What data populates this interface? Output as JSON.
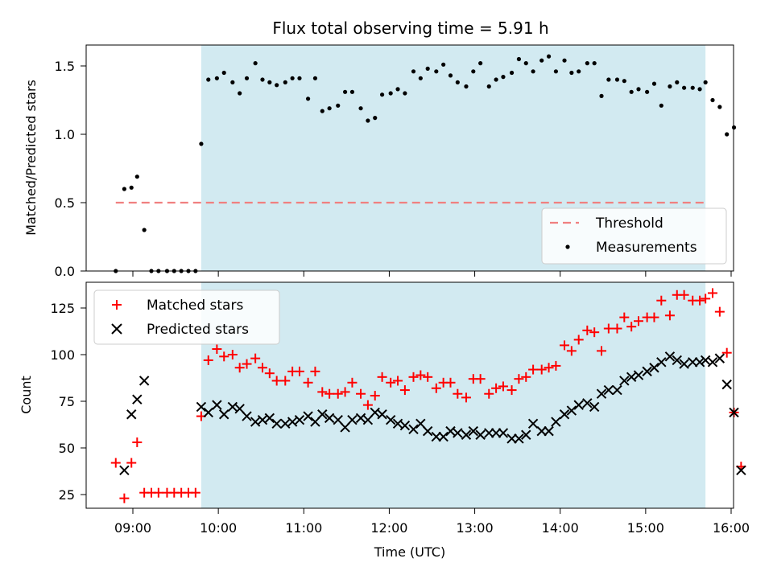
{
  "chart_data": [
    {
      "type": "scatter",
      "title": "Flux total observing time = 5.91 h",
      "xlabel": "",
      "ylabel": "Matched/Predicted stars",
      "xlim": [
        "08:35",
        "16:05"
      ],
      "ylim": [
        0.0,
        1.65
      ],
      "yticks": [
        "0.0",
        "0.5",
        "1.0",
        "1.5"
      ],
      "grid": false,
      "legend_position": "bottom-right",
      "shaded_region": {
        "x": [
          "09:48",
          "15:42"
        ],
        "color": "#add8e6"
      },
      "threshold": {
        "name": "Threshold",
        "value": 0.5,
        "x": [
          "08:48",
          "15:42"
        ],
        "color": "#f08080",
        "style": "dashed"
      },
      "series": [
        {
          "name": "Measurements",
          "color": "#000000",
          "marker": "dot",
          "points": [
            [
              "08:48",
              0.0
            ],
            [
              "08:54",
              0.6
            ],
            [
              "08:59",
              0.61
            ],
            [
              "09:03",
              0.69
            ],
            [
              "09:08",
              0.3
            ],
            [
              "09:13",
              0.0
            ],
            [
              "09:18",
              0.0
            ],
            [
              "09:24",
              0.0
            ],
            [
              "09:29",
              0.0
            ],
            [
              "09:34",
              0.0
            ],
            [
              "09:39",
              0.0
            ],
            [
              "09:44",
              0.0
            ],
            [
              "09:48",
              0.93
            ],
            [
              "09:53",
              1.4
            ],
            [
              "09:59",
              1.41
            ],
            [
              "10:04",
              1.45
            ],
            [
              "10:10",
              1.38
            ],
            [
              "10:15",
              1.3
            ],
            [
              "10:20",
              1.41
            ],
            [
              "10:26",
              1.52
            ],
            [
              "10:31",
              1.4
            ],
            [
              "10:36",
              1.38
            ],
            [
              "10:41",
              1.36
            ],
            [
              "10:47",
              1.38
            ],
            [
              "10:52",
              1.41
            ],
            [
              "10:57",
              1.41
            ],
            [
              "11:03",
              1.26
            ],
            [
              "11:08",
              1.41
            ],
            [
              "11:13",
              1.17
            ],
            [
              "11:18",
              1.19
            ],
            [
              "11:24",
              1.21
            ],
            [
              "11:29",
              1.31
            ],
            [
              "11:34",
              1.31
            ],
            [
              "11:40",
              1.19
            ],
            [
              "11:45",
              1.1
            ],
            [
              "11:50",
              1.12
            ],
            [
              "11:55",
              1.29
            ],
            [
              "12:01",
              1.3
            ],
            [
              "12:06",
              1.33
            ],
            [
              "12:11",
              1.3
            ],
            [
              "12:17",
              1.46
            ],
            [
              "12:22",
              1.41
            ],
            [
              "12:27",
              1.48
            ],
            [
              "12:33",
              1.46
            ],
            [
              "12:38",
              1.51
            ],
            [
              "12:43",
              1.43
            ],
            [
              "12:48",
              1.38
            ],
            [
              "12:54",
              1.35
            ],
            [
              "12:59",
              1.46
            ],
            [
              "13:04",
              1.52
            ],
            [
              "13:10",
              1.35
            ],
            [
              "13:15",
              1.4
            ],
            [
              "13:20",
              1.42
            ],
            [
              "13:26",
              1.45
            ],
            [
              "13:31",
              1.55
            ],
            [
              "13:36",
              1.52
            ],
            [
              "13:41",
              1.46
            ],
            [
              "13:47",
              1.54
            ],
            [
              "13:52",
              1.57
            ],
            [
              "13:57",
              1.46
            ],
            [
              "14:03",
              1.54
            ],
            [
              "14:08",
              1.45
            ],
            [
              "14:13",
              1.46
            ],
            [
              "14:19",
              1.52
            ],
            [
              "14:24",
              1.52
            ],
            [
              "14:29",
              1.28
            ],
            [
              "14:34",
              1.4
            ],
            [
              "14:40",
              1.4
            ],
            [
              "14:45",
              1.39
            ],
            [
              "14:50",
              1.31
            ],
            [
              "14:55",
              1.33
            ],
            [
              "15:01",
              1.31
            ],
            [
              "15:06",
              1.37
            ],
            [
              "15:11",
              1.21
            ],
            [
              "15:17",
              1.35
            ],
            [
              "15:22",
              1.38
            ],
            [
              "15:27",
              1.34
            ],
            [
              "15:33",
              1.34
            ],
            [
              "15:38",
              1.33
            ],
            [
              "15:42",
              1.38
            ],
            [
              "15:47",
              1.25
            ],
            [
              "15:52",
              1.2
            ],
            [
              "15:57",
              1.0
            ],
            [
              "16:02",
              1.05
            ]
          ]
        }
      ]
    },
    {
      "type": "scatter",
      "title": "",
      "xlabel": "Time (UTC)",
      "ylabel": "Count",
      "xlim": [
        "08:35",
        "16:05"
      ],
      "xticks": [
        "09:00",
        "10:00",
        "11:00",
        "12:00",
        "13:00",
        "14:00",
        "15:00",
        "16:00"
      ],
      "ylim": [
        17,
        139
      ],
      "yticks": [
        "25",
        "50",
        "75",
        "100",
        "125"
      ],
      "grid": false,
      "legend_position": "top-left",
      "shaded_region": {
        "x": [
          "09:48",
          "15:42"
        ],
        "color": "#add8e6"
      },
      "series": [
        {
          "name": "Matched stars",
          "color": "#ff0000",
          "marker": "plus",
          "points": [
            [
              "08:48",
              42
            ],
            [
              "08:54",
              23
            ],
            [
              "08:59",
              42
            ],
            [
              "09:03",
              53
            ],
            [
              "09:08",
              26
            ],
            [
              "09:13",
              26
            ],
            [
              "09:18",
              26
            ],
            [
              "09:24",
              26
            ],
            [
              "09:29",
              26
            ],
            [
              "09:34",
              26
            ],
            [
              "09:39",
              26
            ],
            [
              "09:44",
              26
            ],
            [
              "09:48",
              67
            ],
            [
              "09:53",
              97
            ],
            [
              "09:59",
              103
            ],
            [
              "10:04",
              99
            ],
            [
              "10:10",
              100
            ],
            [
              "10:15",
              93
            ],
            [
              "10:20",
              95
            ],
            [
              "10:26",
              98
            ],
            [
              "10:31",
              93
            ],
            [
              "10:36",
              90
            ],
            [
              "10:41",
              86
            ],
            [
              "10:47",
              86
            ],
            [
              "10:52",
              91
            ],
            [
              "10:57",
              91
            ],
            [
              "11:03",
              85
            ],
            [
              "11:08",
              91
            ],
            [
              "11:13",
              80
            ],
            [
              "11:18",
              79
            ],
            [
              "11:24",
              79
            ],
            [
              "11:29",
              80
            ],
            [
              "11:34",
              85
            ],
            [
              "11:40",
              79
            ],
            [
              "11:45",
              73
            ],
            [
              "11:50",
              78
            ],
            [
              "11:55",
              88
            ],
            [
              "12:01",
              85
            ],
            [
              "12:06",
              86
            ],
            [
              "12:11",
              81
            ],
            [
              "12:17",
              88
            ],
            [
              "12:22",
              89
            ],
            [
              "12:27",
              88
            ],
            [
              "12:33",
              82
            ],
            [
              "12:38",
              85
            ],
            [
              "12:43",
              85
            ],
            [
              "12:48",
              79
            ],
            [
              "12:54",
              77
            ],
            [
              "12:59",
              87
            ],
            [
              "13:04",
              87
            ],
            [
              "13:10",
              79
            ],
            [
              "13:15",
              82
            ],
            [
              "13:20",
              83
            ],
            [
              "13:26",
              81
            ],
            [
              "13:31",
              87
            ],
            [
              "13:36",
              88
            ],
            [
              "13:41",
              92
            ],
            [
              "13:47",
              92
            ],
            [
              "13:52",
              93
            ],
            [
              "13:57",
              94
            ],
            [
              "14:03",
              105
            ],
            [
              "14:08",
              102
            ],
            [
              "14:13",
              108
            ],
            [
              "14:19",
              113
            ],
            [
              "14:24",
              112
            ],
            [
              "14:29",
              102
            ],
            [
              "14:34",
              114
            ],
            [
              "14:40",
              114
            ],
            [
              "14:45",
              120
            ],
            [
              "14:50",
              115
            ],
            [
              "14:55",
              118
            ],
            [
              "15:01",
              120
            ],
            [
              "15:06",
              120
            ],
            [
              "15:11",
              129
            ],
            [
              "15:17",
              121
            ],
            [
              "15:22",
              132
            ],
            [
              "15:27",
              132
            ],
            [
              "15:33",
              129
            ],
            [
              "15:38",
              129
            ],
            [
              "15:42",
              130
            ],
            [
              "15:47",
              133
            ],
            [
              "15:52",
              123
            ],
            [
              "15:57",
              101
            ],
            [
              "16:02",
              69
            ],
            [
              "16:07",
              40
            ]
          ]
        },
        {
          "name": "Predicted stars",
          "color": "#000000",
          "marker": "x",
          "points": [
            [
              "08:54",
              38
            ],
            [
              "08:59",
              68
            ],
            [
              "09:03",
              76
            ],
            [
              "09:08",
              86
            ],
            [
              "09:48",
              72
            ],
            [
              "09:53",
              69
            ],
            [
              "09:59",
              73
            ],
            [
              "10:04",
              68
            ],
            [
              "10:10",
              72
            ],
            [
              "10:15",
              71
            ],
            [
              "10:20",
              67
            ],
            [
              "10:26",
              64
            ],
            [
              "10:31",
              65
            ],
            [
              "10:36",
              66
            ],
            [
              "10:41",
              63
            ],
            [
              "10:47",
              63
            ],
            [
              "10:52",
              64
            ],
            [
              "10:57",
              65
            ],
            [
              "11:03",
              67
            ],
            [
              "11:08",
              64
            ],
            [
              "11:13",
              68
            ],
            [
              "11:18",
              66
            ],
            [
              "11:24",
              65
            ],
            [
              "11:29",
              61
            ],
            [
              "11:34",
              65
            ],
            [
              "11:40",
              66
            ],
            [
              "11:45",
              65
            ],
            [
              "11:50",
              69
            ],
            [
              "11:55",
              68
            ],
            [
              "12:01",
              65
            ],
            [
              "12:06",
              63
            ],
            [
              "12:11",
              62
            ],
            [
              "12:17",
              60
            ],
            [
              "12:22",
              63
            ],
            [
              "12:27",
              59
            ],
            [
              "12:33",
              56
            ],
            [
              "12:38",
              56
            ],
            [
              "12:43",
              59
            ],
            [
              "12:48",
              58
            ],
            [
              "12:54",
              57
            ],
            [
              "12:59",
              59
            ],
            [
              "13:04",
              57
            ],
            [
              "13:10",
              58
            ],
            [
              "13:15",
              58
            ],
            [
              "13:20",
              58
            ],
            [
              "13:26",
              55
            ],
            [
              "13:31",
              55
            ],
            [
              "13:36",
              57
            ],
            [
              "13:41",
              63
            ],
            [
              "13:47",
              59
            ],
            [
              "13:52",
              59
            ],
            [
              "13:57",
              64
            ],
            [
              "14:03",
              68
            ],
            [
              "14:08",
              70
            ],
            [
              "14:13",
              73
            ],
            [
              "14:19",
              74
            ],
            [
              "14:24",
              72
            ],
            [
              "14:29",
              79
            ],
            [
              "14:34",
              81
            ],
            [
              "14:40",
              81
            ],
            [
              "14:45",
              86
            ],
            [
              "14:50",
              88
            ],
            [
              "14:55",
              89
            ],
            [
              "15:01",
              91
            ],
            [
              "15:06",
              93
            ],
            [
              "15:11",
              96
            ],
            [
              "15:17",
              99
            ],
            [
              "15:22",
              97
            ],
            [
              "15:27",
              95
            ],
            [
              "15:33",
              96
            ],
            [
              "15:38",
              96
            ],
            [
              "15:42",
              97
            ],
            [
              "15:47",
              96
            ],
            [
              "15:52",
              98
            ],
            [
              "15:57",
              84
            ],
            [
              "16:02",
              69
            ],
            [
              "16:07",
              38
            ]
          ]
        }
      ]
    }
  ]
}
